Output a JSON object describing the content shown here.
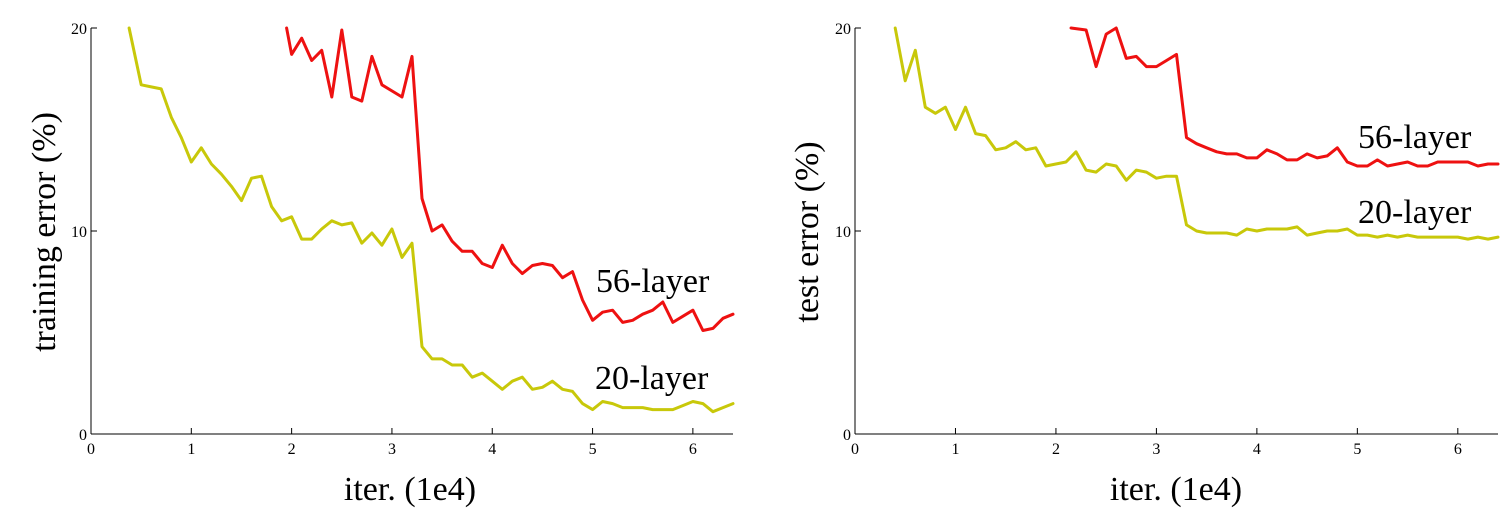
{
  "chart_data": [
    {
      "type": "line",
      "xlabel": "iter. (1e4)",
      "ylabel": "training error (%)",
      "xlim": [
        0,
        6.4
      ],
      "ylim": [
        0,
        20
      ],
      "xticks": [
        "0",
        "1",
        "2",
        "3",
        "4",
        "5",
        "6"
      ],
      "yticks": [
        "0",
        "10",
        "20"
      ],
      "grid": false,
      "series": [
        {
          "name": "56-layer",
          "color": "#ee1111",
          "x": [
            1.95,
            2.0,
            2.1,
            2.2,
            2.3,
            2.4,
            2.5,
            2.6,
            2.7,
            2.8,
            2.9,
            3.0,
            3.1,
            3.2,
            3.3,
            3.4,
            3.5,
            3.6,
            3.7,
            3.8,
            3.9,
            4.0,
            4.1,
            4.2,
            4.3,
            4.4,
            4.5,
            4.6,
            4.7,
            4.8,
            4.9,
            5.0,
            5.1,
            5.2,
            5.3,
            5.4,
            5.5,
            5.6,
            5.7,
            5.8,
            5.9,
            6.0,
            6.1,
            6.2,
            6.3,
            6.4
          ],
          "values": [
            20.0,
            18.7,
            19.5,
            18.4,
            18.9,
            16.6,
            19.9,
            16.6,
            16.4,
            18.6,
            17.2,
            16.9,
            16.6,
            18.6,
            11.6,
            10.0,
            10.3,
            9.5,
            9.0,
            9.0,
            8.4,
            8.2,
            9.3,
            8.4,
            7.9,
            8.3,
            8.4,
            8.3,
            7.7,
            8.0,
            6.6,
            5.6,
            6.0,
            6.1,
            5.5,
            5.6,
            5.9,
            6.1,
            6.5,
            5.5,
            5.8,
            6.1,
            5.1,
            5.2,
            5.7,
            5.9
          ]
        },
        {
          "name": "20-layer",
          "color": "#c8c80a",
          "x": [
            0.38,
            0.5,
            0.6,
            0.7,
            0.8,
            0.9,
            1.0,
            1.1,
            1.2,
            1.3,
            1.4,
            1.5,
            1.6,
            1.7,
            1.8,
            1.9,
            2.0,
            2.1,
            2.2,
            2.3,
            2.4,
            2.5,
            2.6,
            2.7,
            2.8,
            2.9,
            3.0,
            3.1,
            3.2,
            3.3,
            3.4,
            3.5,
            3.6,
            3.7,
            3.8,
            3.9,
            4.0,
            4.1,
            4.2,
            4.3,
            4.4,
            4.5,
            4.6,
            4.7,
            4.8,
            4.9,
            5.0,
            5.1,
            5.2,
            5.3,
            5.4,
            5.5,
            5.6,
            5.7,
            5.8,
            5.9,
            6.0,
            6.1,
            6.2,
            6.3,
            6.4
          ],
          "values": [
            20.0,
            17.2,
            17.1,
            17.0,
            15.6,
            14.6,
            13.4,
            14.1,
            13.3,
            12.8,
            12.2,
            11.5,
            12.6,
            12.7,
            11.2,
            10.5,
            10.7,
            9.6,
            9.6,
            10.1,
            10.5,
            10.3,
            10.4,
            9.4,
            9.9,
            9.3,
            10.1,
            8.7,
            9.4,
            4.3,
            3.7,
            3.7,
            3.4,
            3.4,
            2.8,
            3.0,
            2.6,
            2.2,
            2.6,
            2.8,
            2.2,
            2.3,
            2.6,
            2.2,
            2.1,
            1.5,
            1.2,
            1.6,
            1.5,
            1.3,
            1.3,
            1.3,
            1.2,
            1.2,
            1.2,
            1.4,
            1.6,
            1.5,
            1.1,
            1.3,
            1.5
          ]
        }
      ],
      "annotations": [
        "56-layer",
        "20-layer"
      ]
    },
    {
      "type": "line",
      "xlabel": "iter. (1e4)",
      "ylabel": "test error (%)",
      "xlim": [
        0,
        6.4
      ],
      "ylim": [
        0,
        20
      ],
      "xticks": [
        "0",
        "1",
        "2",
        "3",
        "4",
        "5",
        "6"
      ],
      "yticks": [
        "0",
        "10",
        "20"
      ],
      "grid": false,
      "series": [
        {
          "name": "56-layer",
          "color": "#ee1111",
          "x": [
            2.15,
            2.3,
            2.4,
            2.5,
            2.6,
            2.7,
            2.8,
            2.9,
            3.0,
            3.1,
            3.2,
            3.3,
            3.4,
            3.5,
            3.6,
            3.7,
            3.8,
            3.9,
            4.0,
            4.1,
            4.2,
            4.3,
            4.4,
            4.5,
            4.6,
            4.7,
            4.8,
            4.9,
            5.0,
            5.1,
            5.2,
            5.3,
            5.4,
            5.5,
            5.6,
            5.7,
            5.8,
            5.9,
            6.0,
            6.1,
            6.2,
            6.3,
            6.4
          ],
          "values": [
            20.0,
            19.9,
            18.1,
            19.7,
            20.0,
            18.5,
            18.6,
            18.1,
            18.1,
            18.4,
            18.7,
            14.6,
            14.3,
            14.1,
            13.9,
            13.8,
            13.8,
            13.6,
            13.6,
            14.0,
            13.8,
            13.5,
            13.5,
            13.8,
            13.6,
            13.7,
            14.1,
            13.4,
            13.2,
            13.2,
            13.5,
            13.2,
            13.3,
            13.4,
            13.2,
            13.2,
            13.4,
            13.4,
            13.4,
            13.4,
            13.2,
            13.3,
            13.3
          ]
        },
        {
          "name": "20-layer",
          "color": "#c8c80a",
          "x": [
            0.4,
            0.5,
            0.6,
            0.7,
            0.8,
            0.9,
            1.0,
            1.1,
            1.2,
            1.3,
            1.4,
            1.5,
            1.6,
            1.7,
            1.8,
            1.9,
            2.0,
            2.1,
            2.2,
            2.3,
            2.4,
            2.5,
            2.6,
            2.7,
            2.8,
            2.9,
            3.0,
            3.1,
            3.2,
            3.3,
            3.4,
            3.5,
            3.6,
            3.7,
            3.8,
            3.9,
            4.0,
            4.1,
            4.2,
            4.3,
            4.4,
            4.5,
            4.6,
            4.7,
            4.8,
            4.9,
            5.0,
            5.1,
            5.2,
            5.3,
            5.4,
            5.5,
            5.6,
            5.7,
            5.8,
            5.9,
            6.0,
            6.1,
            6.2,
            6.3,
            6.4
          ],
          "values": [
            20.0,
            17.4,
            18.9,
            16.1,
            15.8,
            16.1,
            15.0,
            16.1,
            14.8,
            14.7,
            14.0,
            14.1,
            14.4,
            14.0,
            14.1,
            13.2,
            13.3,
            13.4,
            13.9,
            13.0,
            12.9,
            13.3,
            13.2,
            12.5,
            13.0,
            12.9,
            12.6,
            12.7,
            12.7,
            10.3,
            10.0,
            9.9,
            9.9,
            9.9,
            9.8,
            10.1,
            10.0,
            10.1,
            10.1,
            10.1,
            10.2,
            9.8,
            9.9,
            10.0,
            10.0,
            10.1,
            9.8,
            9.8,
            9.7,
            9.8,
            9.7,
            9.8,
            9.7,
            9.7,
            9.7,
            9.7,
            9.7,
            9.6,
            9.7,
            9.6,
            9.7
          ]
        }
      ],
      "annotations": [
        "56-layer",
        "20-layer"
      ]
    }
  ]
}
